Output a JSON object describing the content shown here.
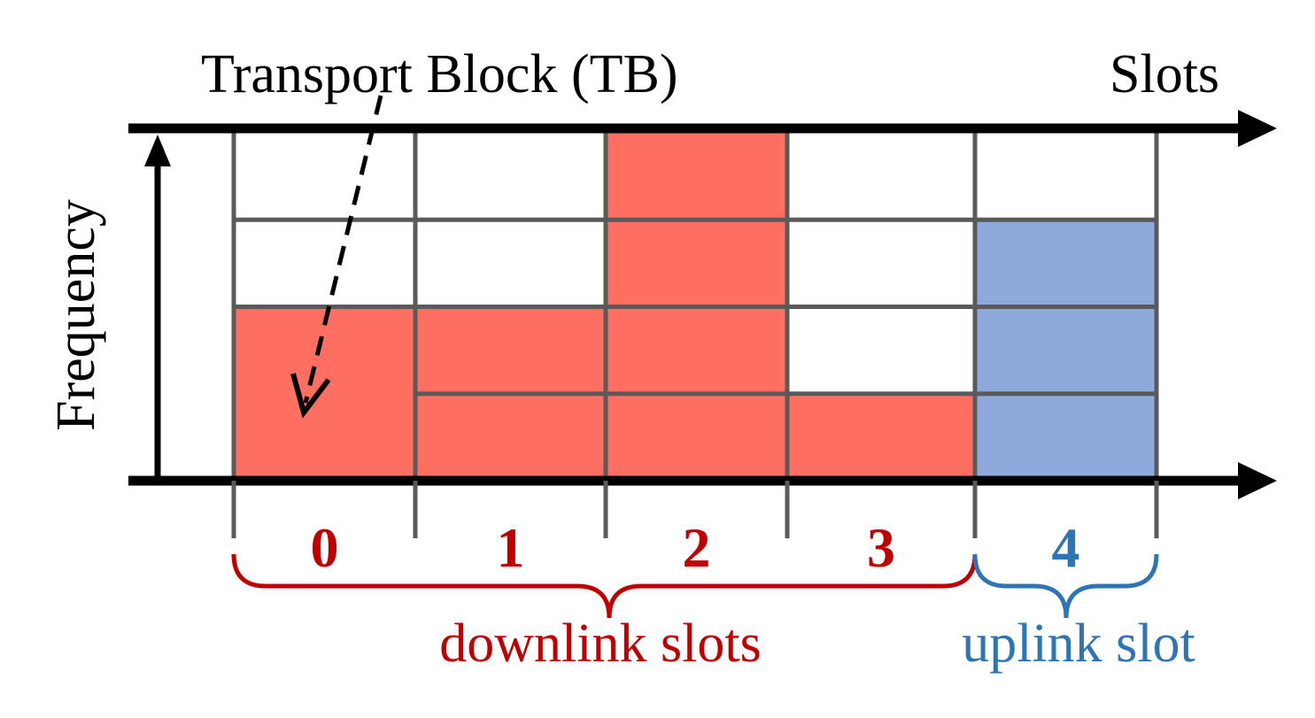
{
  "labels": {
    "tb": "Transport Block (TB)",
    "slots_axis": "Slots",
    "frequency_axis": "Frequency",
    "downlink": "downlink slots",
    "uplink": "uplink slot"
  },
  "slots": [
    {
      "label": "0",
      "type": "downlink"
    },
    {
      "label": "1",
      "type": "downlink"
    },
    {
      "label": "2",
      "type": "downlink"
    },
    {
      "label": "3",
      "type": "downlink"
    },
    {
      "label": "4",
      "type": "uplink"
    }
  ],
  "frequency_rows": 4,
  "allocations": [
    {
      "slot": 0,
      "from_row": 0,
      "to_row": 2,
      "kind": "downlink"
    },
    {
      "slot": 1,
      "from_row": 0,
      "to_row": 2,
      "kind": "downlink"
    },
    {
      "slot": 2,
      "from_row": 0,
      "to_row": 4,
      "kind": "downlink"
    },
    {
      "slot": 3,
      "from_row": 0,
      "to_row": 1,
      "kind": "downlink"
    },
    {
      "slot": 4,
      "from_row": 0,
      "to_row": 3,
      "kind": "uplink"
    }
  ],
  "colors": {
    "downlink_fill": "#FF6F61",
    "uplink_fill": "#8EA9DB",
    "downlink_text": "#C00000",
    "uplink_text": "#2E75B6",
    "grid": "#5A5A5A",
    "axis": "#000000"
  }
}
